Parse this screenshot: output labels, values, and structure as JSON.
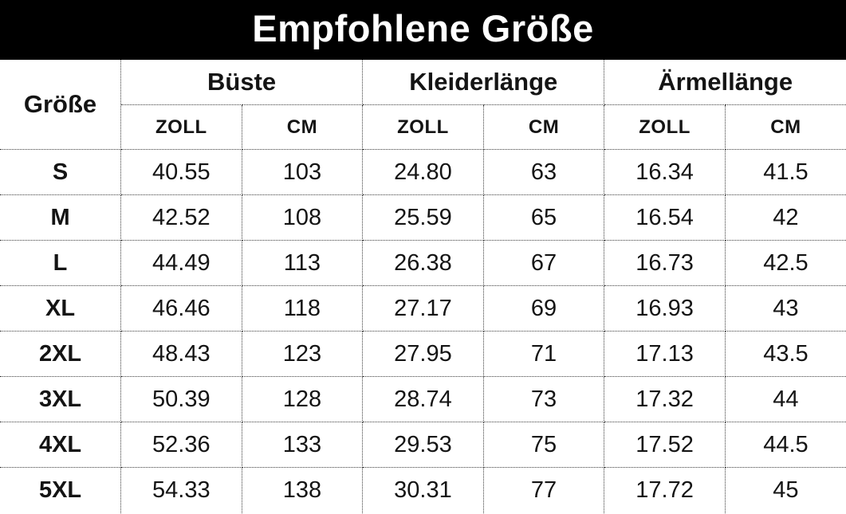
{
  "title": "Empfohlene Größe",
  "colors": {
    "banner_bg": "#000000",
    "banner_text": "#ffffff",
    "table_text": "#141414",
    "border": "#3c3c3c",
    "background": "#ffffff"
  },
  "chart_data": {
    "type": "table",
    "title": "Empfohlene Größe",
    "size_column_header": "Größe",
    "groups": [
      "Büste",
      "Kleiderlänge",
      "Ärmellänge"
    ],
    "unit_row": [
      "ZOLL",
      "CM",
      "ZOLL",
      "CM",
      "ZOLL",
      "CM"
    ],
    "rows": [
      {
        "size": "S",
        "values": [
          "40.55",
          "103",
          "24.80",
          "63",
          "16.34",
          "41.5"
        ]
      },
      {
        "size": "M",
        "values": [
          "42.52",
          "108",
          "25.59",
          "65",
          "16.54",
          "42"
        ]
      },
      {
        "size": "L",
        "values": [
          "44.49",
          "113",
          "26.38",
          "67",
          "16.73",
          "42.5"
        ]
      },
      {
        "size": "XL",
        "values": [
          "46.46",
          "118",
          "27.17",
          "69",
          "16.93",
          "43"
        ]
      },
      {
        "size": "2XL",
        "values": [
          "48.43",
          "123",
          "27.95",
          "71",
          "17.13",
          "43.5"
        ]
      },
      {
        "size": "3XL",
        "values": [
          "50.39",
          "128",
          "28.74",
          "73",
          "17.32",
          "44"
        ]
      },
      {
        "size": "4XL",
        "values": [
          "52.36",
          "133",
          "29.53",
          "75",
          "17.52",
          "44.5"
        ]
      },
      {
        "size": "5XL",
        "values": [
          "54.33",
          "138",
          "30.31",
          "77",
          "17.72",
          "45"
        ]
      }
    ]
  }
}
